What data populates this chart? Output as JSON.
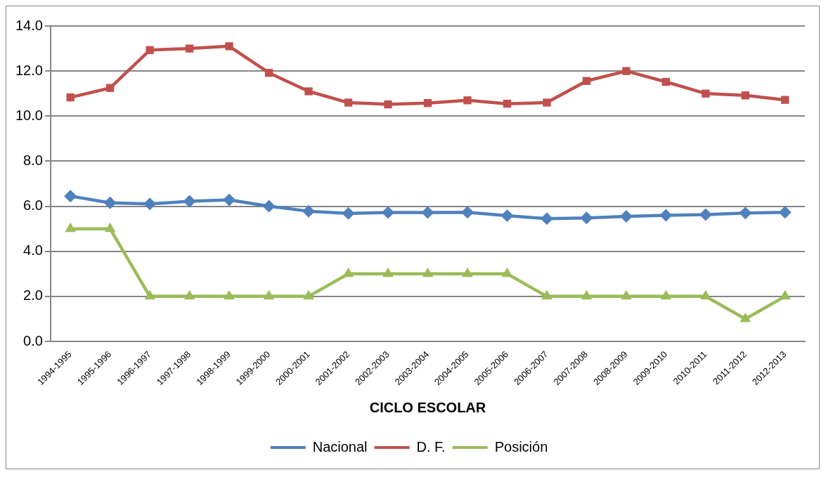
{
  "chart_data": {
    "type": "line",
    "xlabel": "CICLO ESCOLAR",
    "categories": [
      "1994-1995",
      "1995-1996",
      "1996-1997",
      "1997-1998",
      "1998-1999",
      "1999-2000",
      "2000-2001",
      "2001-2002",
      "2002-2003",
      "2003-2004",
      "2004-2005",
      "2005-2006",
      "2006-2007",
      "2007-2008",
      "2008-2009",
      "2009-2010",
      "2010-2011",
      "2011-2012",
      "2012-2013"
    ],
    "series": [
      {
        "name": "Nacional",
        "color": "#4f81bd",
        "marker": "diamond",
        "values": [
          6.45,
          6.15,
          6.1,
          6.22,
          6.28,
          6.0,
          5.78,
          5.68,
          5.72,
          5.72,
          5.73,
          5.58,
          5.45,
          5.48,
          5.55,
          5.6,
          5.63,
          5.7,
          5.73
        ]
      },
      {
        "name": "D. F.",
        "color": "#c0504d",
        "marker": "square",
        "values": [
          10.83,
          11.25,
          12.93,
          13.0,
          13.1,
          11.92,
          11.1,
          10.6,
          10.52,
          10.58,
          10.7,
          10.55,
          10.6,
          11.56,
          12.0,
          11.52,
          11.0,
          10.92,
          10.72
        ]
      },
      {
        "name": "Posición",
        "color": "#9bbb59",
        "marker": "triangle",
        "values": [
          5,
          5,
          2,
          2,
          2,
          2,
          2,
          3,
          3,
          3,
          3,
          3,
          2,
          2,
          2,
          2,
          2,
          1,
          2
        ]
      }
    ],
    "ylim": [
      0,
      14
    ],
    "yticks": [
      {
        "value": 0,
        "label": "0.0"
      },
      {
        "value": 2,
        "label": "2.0"
      },
      {
        "value": 4,
        "label": "4.0"
      },
      {
        "value": 6,
        "label": "6.0"
      },
      {
        "value": 8,
        "label": "8.0"
      },
      {
        "value": 10,
        "label": "10.0"
      },
      {
        "value": 12,
        "label": "12.0"
      },
      {
        "value": 14,
        "label": "14.0"
      }
    ],
    "grid": "y",
    "legend": "bottom",
    "line_style": "solid"
  }
}
